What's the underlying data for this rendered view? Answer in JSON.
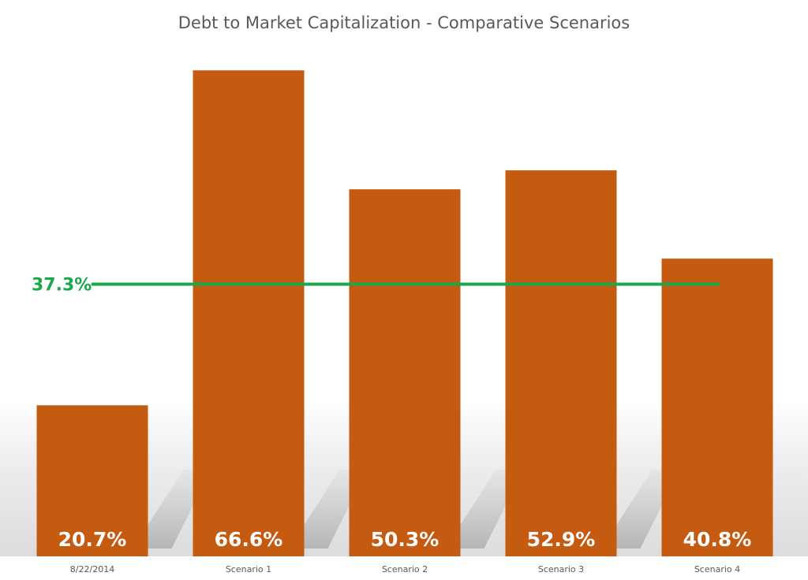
{
  "chart_data": {
    "type": "bar",
    "title": "Debt to Market Capitalization - Comparative Scenarios",
    "xlabel": "",
    "ylabel": "",
    "categories": [
      "8/22/2014",
      "Scenario 1",
      "Scenario 2",
      "Scenario 3",
      "Scenario 4"
    ],
    "values": [
      20.7,
      66.6,
      50.3,
      52.9,
      40.8
    ],
    "data_labels": [
      "20.7%",
      "66.6%",
      "50.3%",
      "52.9%",
      "40.8%"
    ],
    "ylim": [
      0,
      73
    ],
    "grid": false,
    "legend": "none",
    "reference_line": {
      "value": 37.3,
      "label": "37.3%",
      "color": "#1aa84c"
    },
    "colors": {
      "bar": "#c55a11",
      "title": "#595959",
      "tick": "#595959",
      "data_label": "#ffffff"
    }
  }
}
